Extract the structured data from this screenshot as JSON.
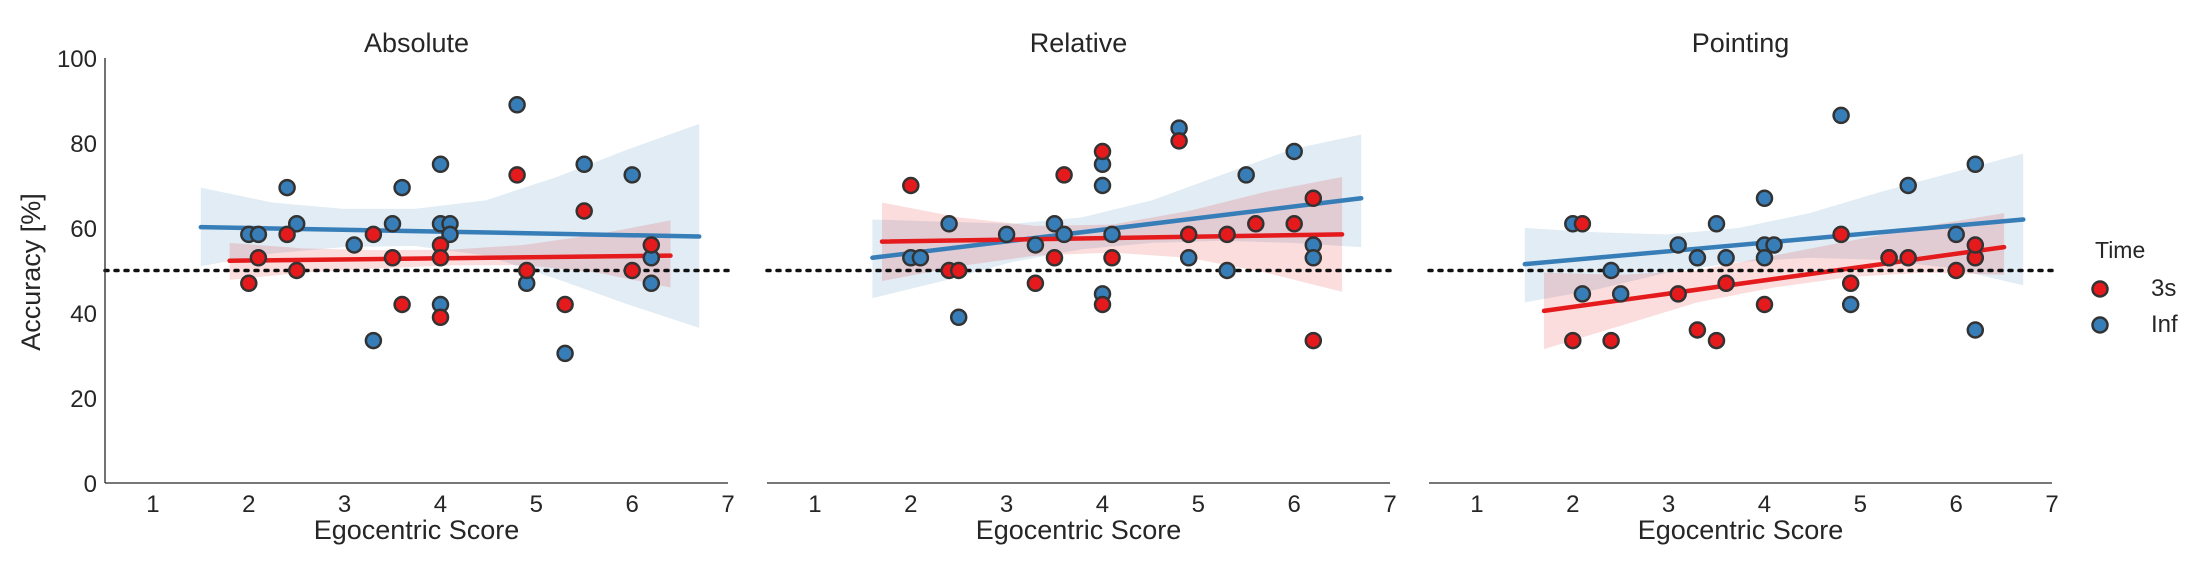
{
  "chart_data": {
    "type": "scatter",
    "ylabel": "Accuracy [%]",
    "xlabel": "Egocentric Score",
    "xlim": [
      0.5,
      7
    ],
    "ylim": [
      0,
      100
    ],
    "xticks": [
      "1",
      "2",
      "3",
      "4",
      "5",
      "6",
      "7"
    ],
    "yticks": [
      "0",
      "20",
      "40",
      "60",
      "80",
      "100"
    ],
    "chance_line": 50,
    "grid": false,
    "legend": {
      "title": "Time",
      "placement": "right",
      "entries": [
        {
          "label": "3s",
          "color": "#e41a1c"
        },
        {
          "label": "Inf",
          "color": "#377eb8"
        }
      ]
    },
    "colors": {
      "3s": "#e41a1c",
      "Inf": "#377eb8",
      "edge": "#333333"
    },
    "panels": [
      {
        "title": "Absolute",
        "series": [
          {
            "name": "3s",
            "points": [
              [
                2.0,
                47
              ],
              [
                2.1,
                53
              ],
              [
                2.4,
                58.5
              ],
              [
                2.5,
                50
              ],
              [
                3.3,
                58.5
              ],
              [
                3.5,
                53
              ],
              [
                3.6,
                42
              ],
              [
                4.0,
                56
              ],
              [
                4.0,
                39
              ],
              [
                4.0,
                53
              ],
              [
                4.8,
                72.5
              ],
              [
                4.9,
                50
              ],
              [
                5.3,
                42
              ],
              [
                5.5,
                64
              ],
              [
                6.0,
                50
              ],
              [
                6.2,
                56
              ]
            ],
            "fit": {
              "x": [
                1.8,
                6.4
              ],
              "y": [
                52.3,
                53.5
              ]
            },
            "ci_upper": [
              56.5,
              55.2,
              54.8,
              54.9,
              56.0,
              58.5,
              61.8
            ],
            "ci_lower": [
              47.8,
              49.5,
              50.5,
              51.2,
              51.3,
              49.5,
              46.0
            ]
          },
          {
            "name": "Inf",
            "points": [
              [
                2.0,
                58.5
              ],
              [
                2.1,
                58.5
              ],
              [
                2.4,
                69.5
              ],
              [
                2.5,
                61
              ],
              [
                3.1,
                56
              ],
              [
                3.3,
                33.5
              ],
              [
                3.5,
                61
              ],
              [
                3.6,
                69.5
              ],
              [
                4.0,
                75
              ],
              [
                4.0,
                61
              ],
              [
                4.0,
                42
              ],
              [
                4.1,
                61
              ],
              [
                4.1,
                58.5
              ],
              [
                4.8,
                89
              ],
              [
                4.9,
                47
              ],
              [
                5.3,
                30.5
              ],
              [
                5.5,
                75
              ],
              [
                6.0,
                72.5
              ],
              [
                6.2,
                47
              ],
              [
                6.2,
                53
              ]
            ],
            "fit": {
              "x": [
                1.5,
                6.7
              ],
              "y": [
                60.2,
                58.0
              ]
            },
            "ci_upper": [
              69.5,
              66.0,
              64.5,
              64.5,
              66.5,
              72.0,
              78.5,
              84.5
            ],
            "ci_lower": [
              51.0,
              54.0,
              55.5,
              55.8,
              53.5,
              48.0,
              42.0,
              36.5
            ]
          }
        ]
      },
      {
        "title": "Relative",
        "series": [
          {
            "name": "3s",
            "points": [
              [
                2.0,
                70
              ],
              [
                2.4,
                50
              ],
              [
                2.5,
                50
              ],
              [
                3.3,
                47
              ],
              [
                3.5,
                53
              ],
              [
                3.6,
                72.5
              ],
              [
                4.0,
                42
              ],
              [
                4.0,
                78
              ],
              [
                4.1,
                53
              ],
              [
                4.8,
                80.5
              ],
              [
                4.9,
                58.5
              ],
              [
                5.3,
                58.5
              ],
              [
                5.6,
                61
              ],
              [
                6.0,
                61
              ],
              [
                6.2,
                67
              ],
              [
                6.2,
                33.5
              ]
            ],
            "fit": {
              "x": [
                1.7,
                6.5
              ],
              "y": [
                56.8,
                58.5
              ]
            },
            "ci_upper": [
              66.0,
              62.5,
              60.5,
              60.8,
              64.0,
              68.5,
              72.0
            ],
            "ci_lower": [
              47.5,
              51.0,
              53.5,
              54.2,
              53.0,
              49.5,
              45.0
            ]
          },
          {
            "name": "Inf",
            "points": [
              [
                2.0,
                53
              ],
              [
                2.1,
                53
              ],
              [
                2.4,
                61
              ],
              [
                2.5,
                39
              ],
              [
                3.0,
                58.5
              ],
              [
                3.3,
                56
              ],
              [
                3.5,
                61
              ],
              [
                3.6,
                58.5
              ],
              [
                4.0,
                44.5
              ],
              [
                4.0,
                70
              ],
              [
                4.0,
                75
              ],
              [
                4.1,
                58.5
              ],
              [
                4.8,
                83.5
              ],
              [
                4.9,
                53
              ],
              [
                5.3,
                50
              ],
              [
                5.5,
                72.5
              ],
              [
                6.0,
                78
              ],
              [
                6.2,
                56
              ],
              [
                6.2,
                53
              ]
            ],
            "fit": {
              "x": [
                1.6,
                6.7
              ],
              "y": [
                53.0,
                67.0
              ]
            },
            "ci_upper": [
              62.0,
              61.5,
              61.0,
              62.5,
              66.5,
              72.5,
              78.5,
              82.0
            ],
            "ci_lower": [
              43.5,
              47.5,
              52.0,
              55.0,
              56.5,
              57.0,
              56.5,
              55.5
            ]
          }
        ]
      },
      {
        "title": "Pointing",
        "series": [
          {
            "name": "3s",
            "points": [
              [
                2.0,
                33.5
              ],
              [
                2.1,
                61
              ],
              [
                2.4,
                33.5
              ],
              [
                3.1,
                44.5
              ],
              [
                3.3,
                36
              ],
              [
                3.5,
                33.5
              ],
              [
                3.6,
                47
              ],
              [
                4.0,
                42
              ],
              [
                4.8,
                58.5
              ],
              [
                4.9,
                47
              ],
              [
                5.3,
                53
              ],
              [
                5.5,
                53
              ],
              [
                6.0,
                50
              ],
              [
                6.2,
                53
              ],
              [
                6.2,
                56
              ]
            ],
            "fit": {
              "x": [
                1.7,
                6.5
              ],
              "y": [
                40.5,
                55.5
              ]
            },
            "ci_upper": [
              49.5,
              49.0,
              50.0,
              53.5,
              57.0,
              60.5,
              63.5
            ],
            "ci_lower": [
              31.5,
              37.0,
              42.5,
              46.0,
              48.5,
              49.5,
              49.0
            ]
          },
          {
            "name": "Inf",
            "points": [
              [
                2.0,
                61
              ],
              [
                2.1,
                44.5
              ],
              [
                2.4,
                50
              ],
              [
                2.5,
                44.5
              ],
              [
                3.1,
                56
              ],
              [
                3.3,
                53
              ],
              [
                3.5,
                61
              ],
              [
                3.6,
                53
              ],
              [
                4.0,
                67
              ],
              [
                4.0,
                56
              ],
              [
                4.0,
                53
              ],
              [
                4.1,
                56
              ],
              [
                4.8,
                86.5
              ],
              [
                4.9,
                42
              ],
              [
                5.3,
                53
              ],
              [
                5.5,
                70
              ],
              [
                6.0,
                58.5
              ],
              [
                6.2,
                75
              ],
              [
                6.2,
                36
              ]
            ],
            "fit": {
              "x": [
                1.5,
                6.7
              ],
              "y": [
                51.5,
                62.0
              ]
            },
            "ci_upper": [
              60.0,
              59.0,
              58.5,
              60.0,
              63.5,
              68.5,
              73.0,
              77.5
            ],
            "ci_lower": [
              42.5,
              45.5,
              49.5,
              52.0,
              53.0,
              52.5,
              50.5,
              46.5
            ]
          }
        ]
      }
    ]
  }
}
